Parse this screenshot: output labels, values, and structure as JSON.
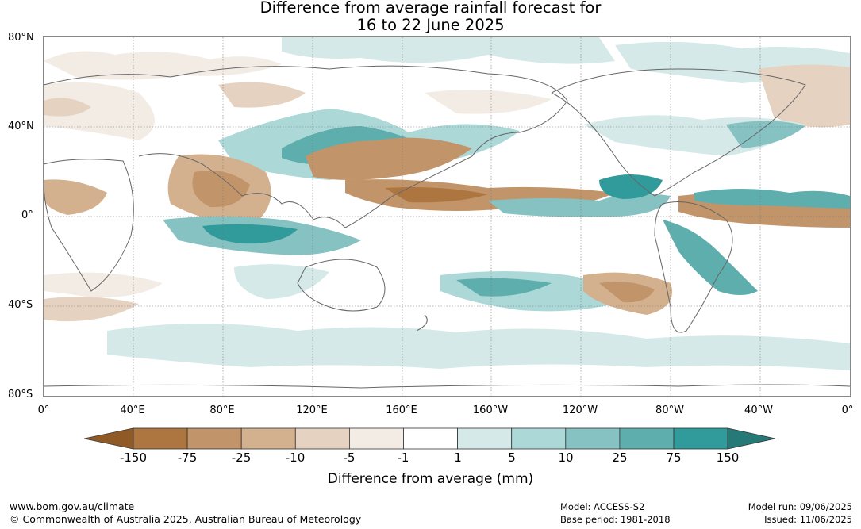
{
  "title_line1": "Difference from average rainfall forecast for",
  "title_line2": "16 to 22 June 2025",
  "lat_labels": [
    "80°N",
    "40°N",
    "0°",
    "40°S",
    "80°S"
  ],
  "lon_labels": [
    "0°",
    "40°E",
    "80°E",
    "120°E",
    "160°E",
    "160°W",
    "120°W",
    "80°W",
    "40°W",
    "0°"
  ],
  "colorbar": {
    "title": "Difference from average (mm)",
    "tick_labels": [
      "-150",
      "-75",
      "-25",
      "-10",
      "-5",
      "-1",
      "1",
      "5",
      "10",
      "25",
      "75",
      "150"
    ],
    "colors": [
      "#8f5a26",
      "#ad7640",
      "#c2946a",
      "#d3b08e",
      "#e5d2c1",
      "#f3ece5",
      "#ffffff",
      "#d5e9e8",
      "#add8d8",
      "#86c2c2",
      "#5eaeae",
      "#319a9a",
      "#257a78"
    ]
  },
  "footer": {
    "url": "www.bom.gov.au/climate",
    "copyright": "© Commonwealth of Australia 2025, Australian Bureau of Meteorology",
    "model": "Model: ACCESS-S2",
    "base_period": "Base period: 1981-2018",
    "model_run": "Model run: 09/06/2025",
    "issued": "Issued: 11/06/2025"
  }
}
